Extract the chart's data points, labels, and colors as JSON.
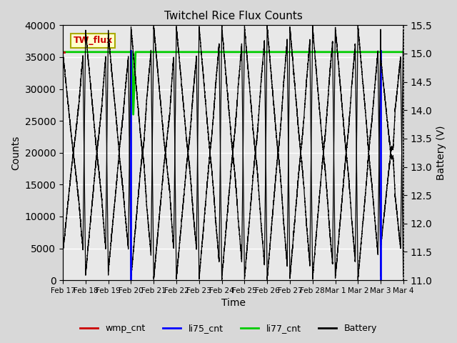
{
  "title": "Twitchel Rice Flux Counts",
  "xlabel": "Time",
  "ylabel_left": "Counts",
  "ylabel_right": "Battery (V)",
  "ylim_left": [
    0,
    40000
  ],
  "ylim_right": [
    11.0,
    15.5
  ],
  "bg_color": "#d8d8d8",
  "plot_bg_color": "#e8e8e8",
  "xtick_labels": [
    "Feb 17",
    "Feb 18",
    "Feb 19",
    "Feb 20",
    "Feb 21",
    "Feb 22",
    "Feb 23",
    "Feb 24",
    "Feb 25",
    "Feb 26",
    "Feb 27",
    "Feb 28",
    "Mar 1",
    "Mar 2",
    "Mar 3",
    "Mar 4"
  ],
  "annotation_text": "TW_flux",
  "annotation_text_color": "#cc0000",
  "annotation_box_facecolor": "#ffffcc",
  "annotation_box_edgecolor": "#aaaa00",
  "li77_level": 35800,
  "battery_color": "#000000",
  "li75_color": "#0000ff",
  "li77_color": "#00cc00",
  "wmp_color": "#cc0000",
  "yticks_left": [
    0,
    5000,
    10000,
    15000,
    20000,
    25000,
    30000,
    35000,
    40000
  ],
  "yticks_right": [
    11.0,
    11.5,
    12.0,
    12.5,
    13.0,
    13.5,
    14.0,
    14.5,
    15.0,
    15.5
  ]
}
